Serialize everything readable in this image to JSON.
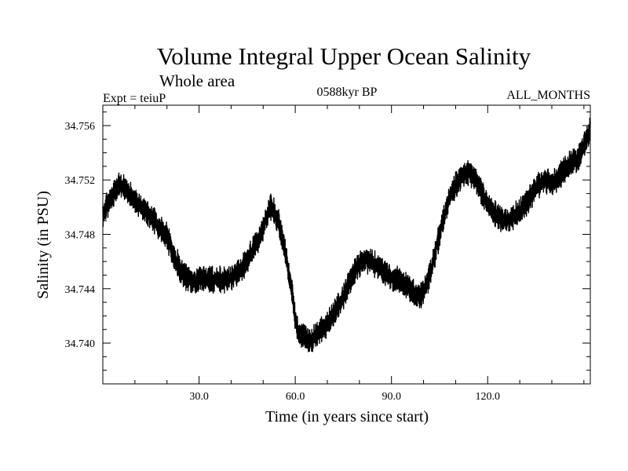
{
  "chart_data": {
    "type": "line",
    "title": "Volume Integral Upper Ocean Salinity",
    "subtitle": "Whole area",
    "experiment": "Expt = teiuP",
    "period": "0588kyr BP",
    "months": "ALL_MONTHS",
    "xlabel": "Time (in years since start)",
    "ylabel": "Salinity (in PSU)",
    "xlim": [
      0,
      152
    ],
    "ylim": [
      34.737,
      34.7575
    ],
    "x_ticks": [
      30,
      60,
      90,
      120
    ],
    "x_tick_labels": [
      "30.0",
      "60.0",
      "90.0",
      "120.0"
    ],
    "x_minor_step": 10,
    "y_ticks": [
      34.74,
      34.744,
      34.748,
      34.752,
      34.756
    ],
    "y_tick_labels": [
      "34.740",
      "34.744",
      "34.748",
      "34.752",
      "34.756"
    ],
    "y_minor_step": 0.001,
    "grid": false,
    "series": [
      {
        "name": "salinity",
        "points_per_year": 12,
        "noise_amplitude": 0.0009,
        "x": [
          0,
          1,
          3,
          5,
          7,
          9,
          11,
          14,
          17,
          20,
          22,
          25,
          28,
          31,
          35,
          39,
          43,
          46,
          49,
          51,
          52,
          53,
          55,
          57,
          59,
          60,
          61,
          63,
          65,
          67,
          70,
          73,
          76,
          79,
          82,
          85,
          88,
          90,
          93,
          95,
          97,
          98,
          100,
          102,
          104,
          106,
          108,
          110,
          112,
          114,
          116,
          118,
          120,
          122,
          124,
          126,
          128,
          130,
          132,
          134,
          136,
          138,
          140,
          142,
          144,
          146,
          148,
          150,
          152
        ],
        "y": [
          34.7492,
          34.75,
          34.7508,
          34.7516,
          34.7514,
          34.7508,
          34.7502,
          34.7495,
          34.7488,
          34.7478,
          34.7465,
          34.745,
          34.7445,
          34.7448,
          34.7446,
          34.7447,
          34.7453,
          34.7465,
          34.7478,
          34.7492,
          34.75,
          34.7498,
          34.7488,
          34.7465,
          34.7438,
          34.7418,
          34.7408,
          34.7405,
          34.7402,
          34.7407,
          34.7414,
          34.7425,
          34.744,
          34.7455,
          34.7462,
          34.7458,
          34.7452,
          34.7448,
          34.7446,
          34.7441,
          34.7437,
          34.7434,
          34.7438,
          34.745,
          34.747,
          34.749,
          34.7506,
          34.7516,
          34.7522,
          34.7526,
          34.7522,
          34.7512,
          34.7502,
          34.7496,
          34.7491,
          34.749,
          34.7493,
          34.7497,
          34.7503,
          34.751,
          34.7517,
          34.752,
          34.7518,
          34.7522,
          34.7528,
          34.7532,
          34.7535,
          34.7545,
          34.7558
        ]
      }
    ]
  }
}
